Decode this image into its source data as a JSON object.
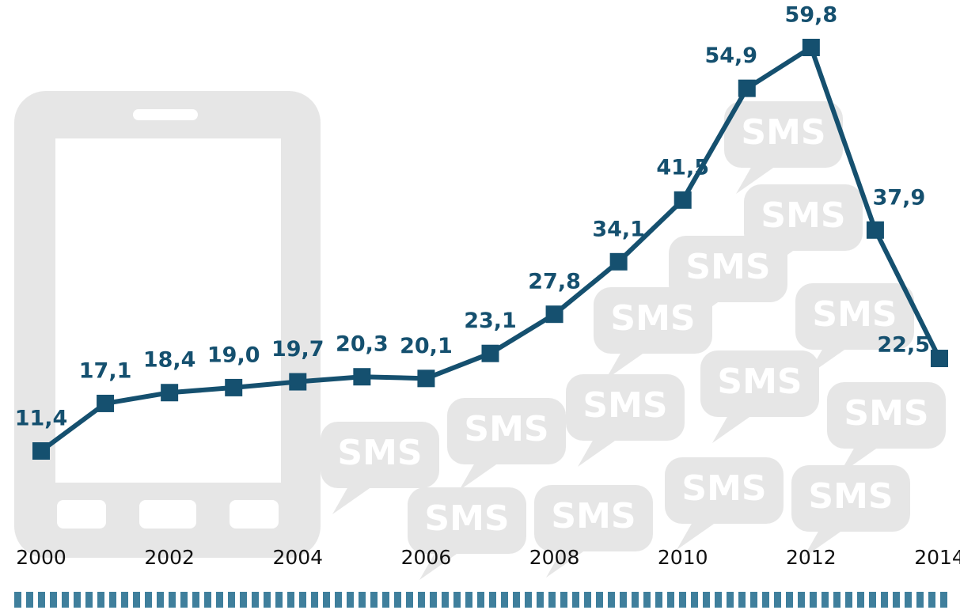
{
  "chart_data": {
    "type": "line",
    "x": [
      2000,
      2001,
      2002,
      2003,
      2004,
      2005,
      2006,
      2007,
      2008,
      2009,
      2010,
      2011,
      2012,
      2013,
      2014
    ],
    "series": [
      {
        "color": "#15506f",
        "values": [
          11.4,
          17.1,
          18.4,
          19.0,
          19.7,
          20.3,
          20.1,
          23.1,
          27.8,
          34.1,
          41.5,
          54.9,
          59.8,
          37.9,
          22.5
        ],
        "value_labels": [
          "11,4",
          "17,1",
          "18,4",
          "19,0",
          "19,7",
          "20,3",
          "20,1",
          "23,1",
          "27,8",
          "34,1",
          "41,5",
          "54,9",
          "59,8",
          "37,9",
          "22,5"
        ]
      }
    ],
    "xlim": [
      2000,
      2014
    ],
    "xticks": [
      2000,
      2002,
      2004,
      2006,
      2008,
      2010,
      2012,
      2014
    ],
    "decoration_label": "SMS"
  }
}
